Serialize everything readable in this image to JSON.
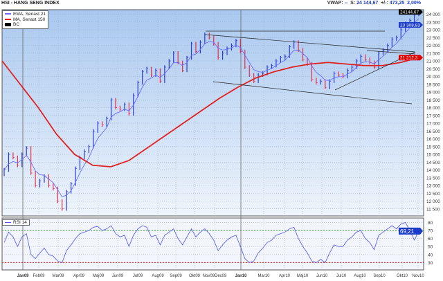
{
  "header": {
    "title": "HSI - HANG SENG INDEX",
    "vwap_label": "VWAP:",
    "vwap_value": "--",
    "s_label": "S:",
    "s_value": "24 144,67",
    "change_label": "+/-:",
    "change_value": "473,25",
    "change_pct": "2,00%"
  },
  "legend": {
    "items": [
      {
        "label": "EMA, Senast 21",
        "color": "#6a6aff"
      },
      {
        "label": "MA, Senast 150",
        "color": "#e02020"
      },
      {
        "label": "BC",
        "color": "#000000"
      }
    ]
  },
  "rsi_legend": "RSI 14",
  "colors": {
    "background_top": "#a9c8ef",
    "background_bottom": "#eef4fb",
    "up_bar": "#2a3ad8",
    "down_bar": "#e0304a",
    "ema": "#6a6aff",
    "ma": "#e02020",
    "rsi": "#5050f0",
    "rsi_upper": "#20a020",
    "rsi_lower": "#e02020"
  },
  "chart_data": [
    {
      "type": "line",
      "title": "HSI - HANG SENG INDEX",
      "ylim": [
        11500,
        24500
      ],
      "x_tick_labels": [
        "Jan09",
        "Feb09",
        "Mar09",
        "Apr09",
        "Maj09",
        "Jun09",
        "Jul09",
        "Aug09",
        "Sep09",
        "Okt09",
        "Nov09Dec09",
        "Jan10",
        "Mar10",
        "Apr10",
        "Maj10",
        "Jun10",
        "Jul10",
        "Aug10",
        "Sep10",
        "Okt10",
        "Nov10"
      ],
      "y_tick_labels": [
        "24 000",
        "23 500",
        "23 000",
        "22 500",
        "22 000",
        "21 500",
        "21 000",
        "20 500",
        "20 000",
        "19 500",
        "19 000",
        "18 500",
        "18 000",
        "17 500",
        "17 000",
        "16 500",
        "16 000",
        "15 500",
        "15 000",
        "14 500",
        "14 000",
        "13 500",
        "13 000",
        "12 500",
        "12 000",
        "11 500"
      ],
      "series": [
        {
          "name": "HSI",
          "values": [
            14000,
            15000,
            14800,
            14300,
            15000,
            15400,
            13800,
            13000,
            13300,
            13600,
            13000,
            12800,
            12000,
            11500,
            12600,
            13100,
            14100,
            14800,
            15200,
            15500,
            16500,
            17000,
            16900,
            17300,
            18500,
            18000,
            17900,
            18200,
            17600,
            18800,
            19600,
            20300,
            20500,
            20100,
            20400,
            19700,
            20600,
            21000,
            21500,
            20900,
            20400,
            21200,
            22100,
            21600,
            22200,
            22700,
            22500,
            22100,
            21200,
            21500,
            21800,
            22000,
            22300,
            21600,
            20600,
            20100,
            19700,
            20100,
            20200,
            20600,
            20700,
            21000,
            21200,
            21300,
            21900,
            22200,
            21700,
            21100,
            20800,
            19800,
            19600,
            19700,
            19300,
            19700,
            20200,
            20100,
            20000,
            20400,
            20600,
            21000,
            21300,
            21100,
            20900,
            20600,
            21500,
            21700,
            22000,
            22400,
            22500,
            23000,
            23400,
            23600,
            24000,
            24144.67
          ]
        },
        {
          "name": "EMA, Senast 21",
          "last": "23 308,83"
        },
        {
          "name": "MA, Senast 150",
          "values": [
            21000,
            19500,
            18000,
            16300,
            15000,
            14300,
            14200,
            14600,
            15400,
            16200,
            17000,
            17800,
            18600,
            19300,
            19900,
            20300,
            20600,
            20800,
            20900,
            20800,
            20700,
            20700,
            20900,
            21212.3
          ],
          "last": "21 212,3"
        }
      ],
      "last_price_label": "24144,67"
    },
    {
      "type": "line",
      "title": "RSI 14",
      "ylim": [
        20,
        85
      ],
      "y_tick_labels": [
        "80",
        "70",
        "60",
        "50",
        "40",
        "30"
      ],
      "levels": [
        70,
        30
      ],
      "last_label": "69,21",
      "series": [
        {
          "name": "RSI 14",
          "values": [
            55,
            68,
            62,
            50,
            62,
            66,
            40,
            35,
            42,
            48,
            40,
            38,
            32,
            30,
            45,
            52,
            60,
            66,
            68,
            70,
            74,
            75,
            70,
            72,
            76,
            66,
            62,
            64,
            50,
            64,
            72,
            76,
            74,
            62,
            64,
            52,
            64,
            68,
            72,
            60,
            52,
            62,
            72,
            62,
            68,
            72,
            66,
            58,
            45,
            52,
            58,
            62,
            64,
            50,
            35,
            30,
            32,
            42,
            48,
            55,
            58,
            64,
            66,
            68,
            72,
            74,
            60,
            50,
            42,
            32,
            30,
            34,
            30,
            42,
            52,
            50,
            50,
            58,
            62,
            68,
            70,
            60,
            55,
            46,
            64,
            68,
            72,
            76,
            72,
            78,
            80,
            70,
            58,
            69.21
          ]
        }
      ]
    }
  ]
}
